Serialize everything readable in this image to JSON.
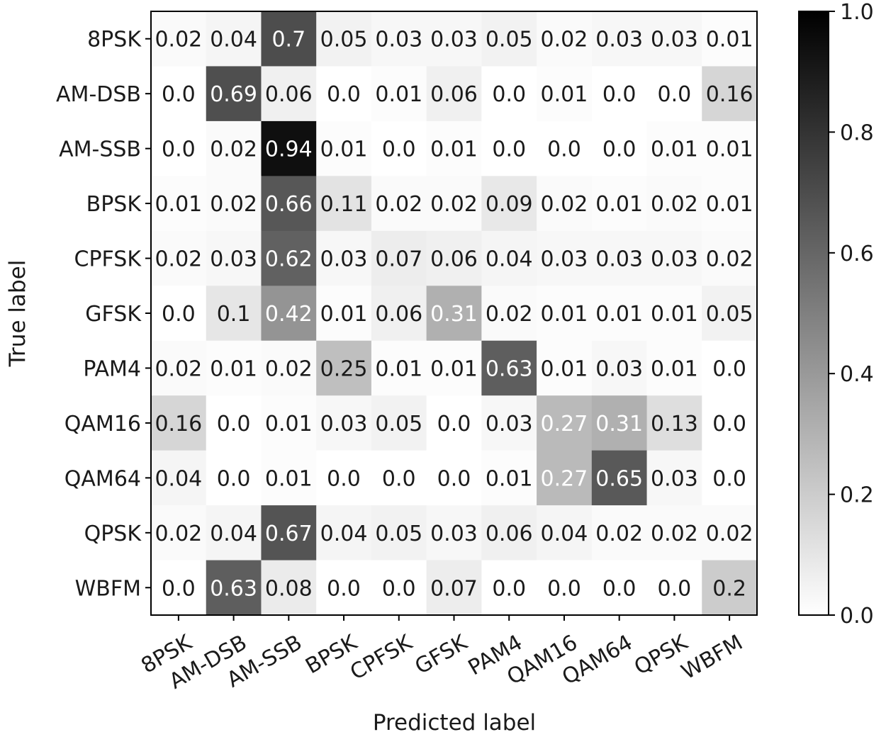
{
  "chart_data": {
    "type": "heatmap",
    "title": "",
    "xlabel": "Predicted label",
    "ylabel": "True label",
    "x_categories": [
      "8PSK",
      "AM-DSB",
      "AM-SSB",
      "BPSK",
      "CPFSK",
      "GFSK",
      "PAM4",
      "QAM16",
      "QAM64",
      "QPSK",
      "WBFM"
    ],
    "y_categories": [
      "8PSK",
      "AM-DSB",
      "AM-SSB",
      "BPSK",
      "CPFSK",
      "GFSK",
      "PAM4",
      "QAM16",
      "QAM64",
      "QPSK",
      "WBFM"
    ],
    "values": [
      [
        0.02,
        0.04,
        0.7,
        0.05,
        0.03,
        0.03,
        0.05,
        0.02,
        0.03,
        0.03,
        0.01
      ],
      [
        0.0,
        0.69,
        0.06,
        0.0,
        0.01,
        0.06,
        0.0,
        0.01,
        0.0,
        0.0,
        0.16
      ],
      [
        0.0,
        0.02,
        0.94,
        0.01,
        0.0,
        0.01,
        0.0,
        0.0,
        0.0,
        0.01,
        0.01
      ],
      [
        0.01,
        0.02,
        0.66,
        0.11,
        0.02,
        0.02,
        0.09,
        0.02,
        0.01,
        0.02,
        0.01
      ],
      [
        0.02,
        0.03,
        0.62,
        0.03,
        0.07,
        0.06,
        0.04,
        0.03,
        0.03,
        0.03,
        0.02
      ],
      [
        0.0,
        0.1,
        0.42,
        0.01,
        0.06,
        0.31,
        0.02,
        0.01,
        0.01,
        0.01,
        0.05
      ],
      [
        0.02,
        0.01,
        0.02,
        0.25,
        0.01,
        0.01,
        0.63,
        0.01,
        0.03,
        0.01,
        0.0
      ],
      [
        0.16,
        0.0,
        0.01,
        0.03,
        0.05,
        0.0,
        0.03,
        0.27,
        0.31,
        0.13,
        0.0
      ],
      [
        0.04,
        0.0,
        0.01,
        0.0,
        0.0,
        0.0,
        0.01,
        0.27,
        0.65,
        0.03,
        0.0
      ],
      [
        0.02,
        0.04,
        0.67,
        0.04,
        0.05,
        0.03,
        0.06,
        0.04,
        0.02,
        0.02,
        0.02
      ],
      [
        0.0,
        0.63,
        0.08,
        0.0,
        0.0,
        0.07,
        0.0,
        0.0,
        0.0,
        0.0,
        0.2
      ]
    ],
    "value_labels": [
      [
        "0.02",
        "0.04",
        "0.7",
        "0.05",
        "0.03",
        "0.03",
        "0.05",
        "0.02",
        "0.03",
        "0.03",
        "0.01"
      ],
      [
        "0.0",
        "0.69",
        "0.06",
        "0.0",
        "0.01",
        "0.06",
        "0.0",
        "0.01",
        "0.0",
        "0.0",
        "0.16"
      ],
      [
        "0.0",
        "0.02",
        "0.94",
        "0.01",
        "0.0",
        "0.01",
        "0.0",
        "0.0",
        "0.0",
        "0.01",
        "0.01"
      ],
      [
        "0.01",
        "0.02",
        "0.66",
        "0.11",
        "0.02",
        "0.02",
        "0.09",
        "0.02",
        "0.01",
        "0.02",
        "0.01"
      ],
      [
        "0.02",
        "0.03",
        "0.62",
        "0.03",
        "0.07",
        "0.06",
        "0.04",
        "0.03",
        "0.03",
        "0.03",
        "0.02"
      ],
      [
        "0.0",
        "0.1",
        "0.42",
        "0.01",
        "0.06",
        "0.31",
        "0.02",
        "0.01",
        "0.01",
        "0.01",
        "0.05"
      ],
      [
        "0.02",
        "0.01",
        "0.02",
        "0.25",
        "0.01",
        "0.01",
        "0.63",
        "0.01",
        "0.03",
        "0.01",
        "0.0"
      ],
      [
        "0.16",
        "0.0",
        "0.01",
        "0.03",
        "0.05",
        "0.0",
        "0.03",
        "0.27",
        "0.31",
        "0.13",
        "0.0"
      ],
      [
        "0.04",
        "0.0",
        "0.01",
        "0.0",
        "0.0",
        "0.0",
        "0.01",
        "0.27",
        "0.65",
        "0.03",
        "0.0"
      ],
      [
        "0.02",
        "0.04",
        "0.67",
        "0.04",
        "0.05",
        "0.03",
        "0.06",
        "0.04",
        "0.02",
        "0.02",
        "0.02"
      ],
      [
        "0.0",
        "0.63",
        "0.08",
        "0.0",
        "0.0",
        "0.07",
        "0.0",
        "0.0",
        "0.0",
        "0.0",
        "0.2"
      ]
    ],
    "colorbar": {
      "range": [
        0.0,
        1.0
      ],
      "ticks": [
        0.0,
        0.2,
        0.4,
        0.6,
        0.8,
        1.0
      ],
      "tick_labels": [
        "0.0",
        "0.2",
        "0.4",
        "0.6",
        "0.8",
        "1.0"
      ]
    },
    "colormap": "Greys",
    "grid": false,
    "colors": {
      "min": "#ffffff",
      "max": "#000000",
      "text_dark": "#1a1a1a",
      "text_light": "#ffffff"
    }
  }
}
